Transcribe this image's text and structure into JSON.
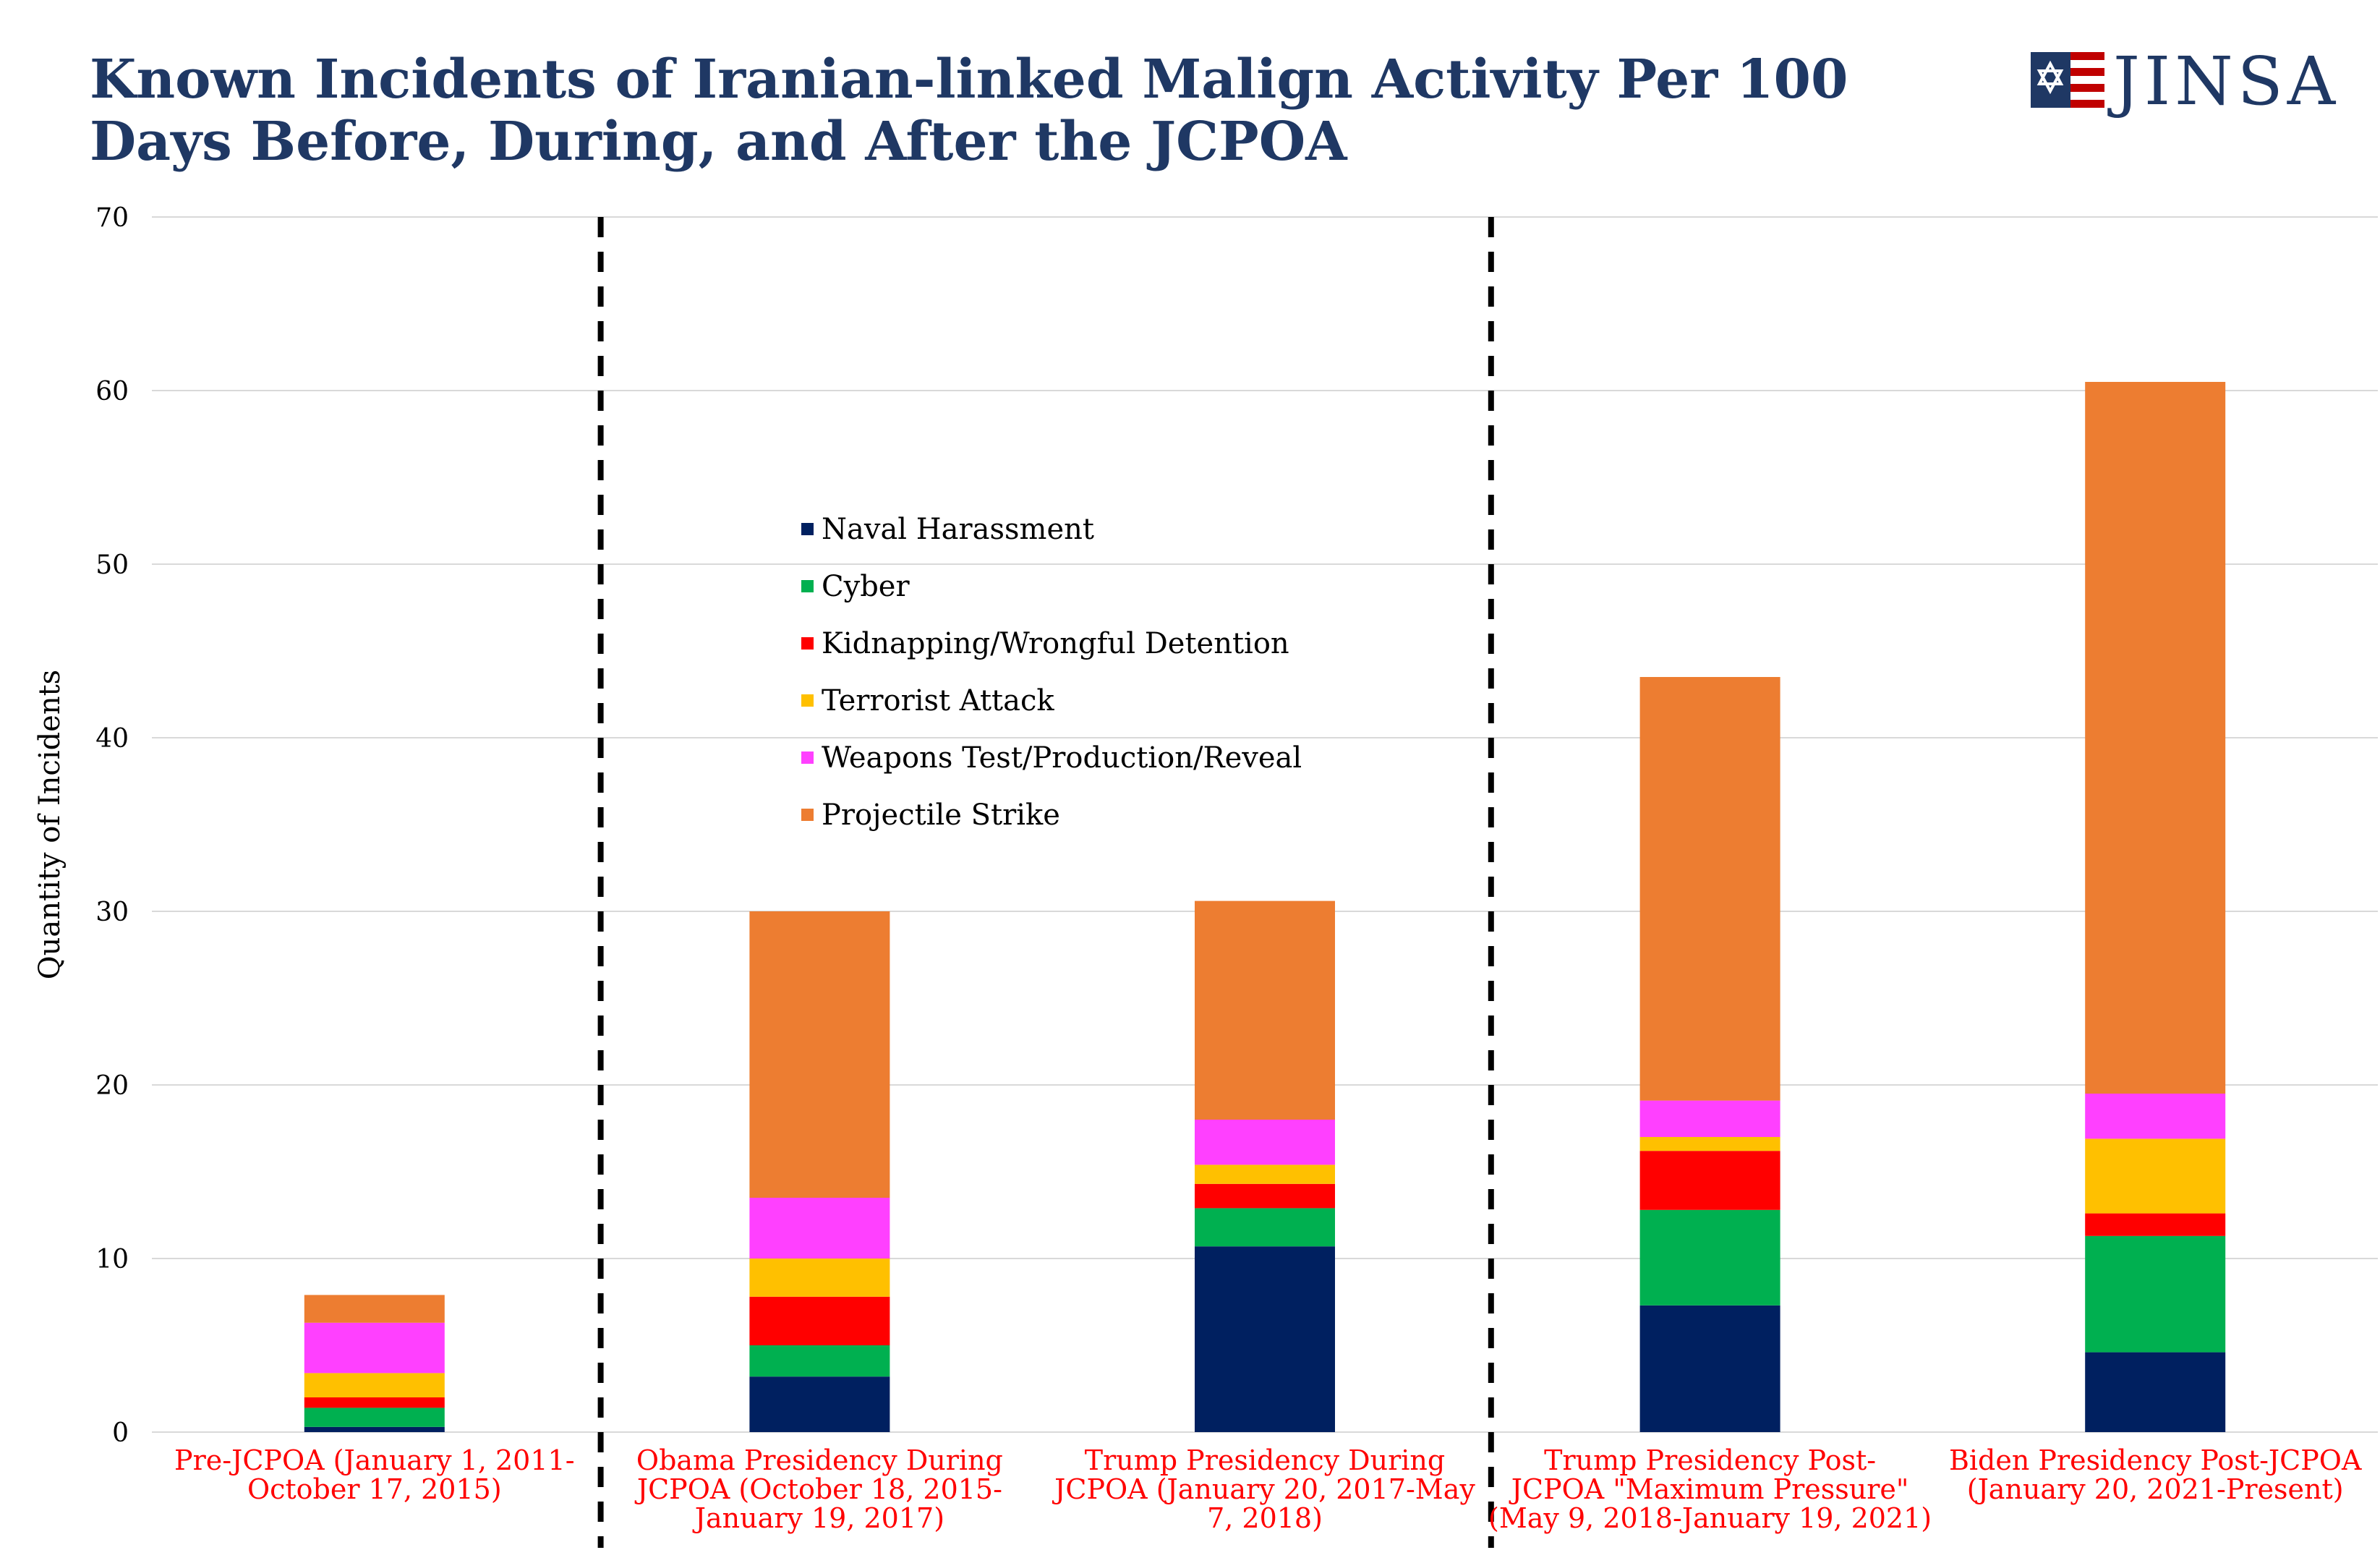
{
  "title_lines": [
    "Known Incidents of Iranian-linked Malign Activity Per 100",
    "Days Before, During, and After the JCPOA"
  ],
  "logo": {
    "text": "JINSA"
  },
  "chart_data": {
    "type": "bar",
    "stacked": true,
    "title": "Known Incidents of Iranian-linked Malign Activity Per 100 Days Before, During, and After the JCPOA",
    "xlabel": "",
    "ylabel": "Quantity of Incidents",
    "ylim": [
      0,
      70
    ],
    "yticks": [
      0,
      10,
      20,
      30,
      40,
      50,
      60,
      70
    ],
    "grid": true,
    "legend_position": "center-left",
    "categories": [
      [
        "Pre-JCPOA (January 1, 2011-",
        "October 17, 2015)"
      ],
      [
        "Obama Presidency During",
        "JCPOA  (October 18, 2015-",
        "January 19, 2017)"
      ],
      [
        "Trump Presidency During",
        "JCPOA (January 20, 2017-May",
        "7, 2018)"
      ],
      [
        "Trump Presidency Post-",
        "JCPOA \"Maximum Pressure\"",
        "(May 9, 2018-January 19, 2021)"
      ],
      [
        "Biden Presidency Post-JCPOA",
        "(January 20, 2021-Present)"
      ]
    ],
    "period_dividers_after": [
      0,
      2
    ],
    "series": [
      {
        "name": "Naval Harassment",
        "color": "#002060",
        "values": [
          0.3,
          3.2,
          10.7,
          7.3,
          4.6
        ]
      },
      {
        "name": "Cyber",
        "color": "#00b050",
        "values": [
          1.1,
          1.8,
          2.2,
          5.5,
          6.7
        ]
      },
      {
        "name": "Kidnapping/Wrongful Detention",
        "color": "#ff0000",
        "values": [
          0.6,
          2.8,
          1.4,
          3.4,
          1.3
        ]
      },
      {
        "name": "Terrorist Attack",
        "color": "#ffc000",
        "values": [
          1.4,
          2.2,
          1.1,
          0.8,
          4.3
        ]
      },
      {
        "name": "Weapons Test/Production/Reveal",
        "color": "#ff40ff",
        "values": [
          2.9,
          3.5,
          2.6,
          2.1,
          2.6
        ]
      },
      {
        "name": "Projectile Strike",
        "color": "#ed7d31",
        "values": [
          1.6,
          16.5,
          12.6,
          24.4,
          41.0
        ]
      }
    ]
  }
}
